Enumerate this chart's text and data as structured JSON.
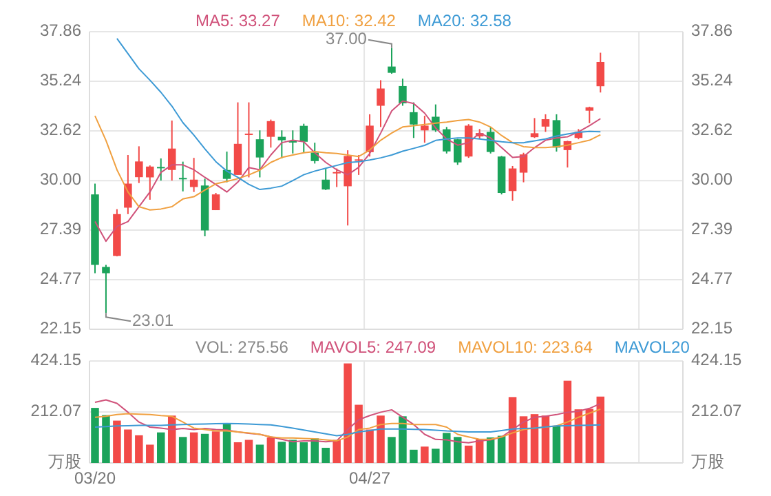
{
  "chart_data": [
    {
      "type": "candlestick",
      "categories": [
        null,
        null,
        null,
        null,
        null,
        null,
        null,
        null,
        null,
        null,
        null,
        null,
        null,
        null,
        null,
        null,
        null,
        null,
        null,
        null,
        null,
        null,
        null,
        null,
        null,
        null,
        null,
        null,
        null,
        null,
        null,
        null,
        null,
        null,
        null,
        null,
        null,
        null,
        null,
        null,
        null,
        null,
        null,
        null,
        null,
        null,
        null,
        null,
        null,
        null,
        null,
        null,
        null,
        null
      ],
      "ohlc": [
        [
          29.27,
          29.84,
          25.11,
          25.55
        ],
        [
          25.44,
          25.55,
          23.01,
          25.11
        ],
        [
          26.02,
          28.49,
          26.0,
          28.23
        ],
        [
          28.57,
          31.35,
          28.23,
          29.84
        ],
        [
          30.18,
          31.81,
          29.87,
          31.01
        ],
        [
          30.17,
          30.8,
          28.99,
          30.74
        ],
        [
          30.72,
          31.17,
          30.0,
          30.68
        ],
        [
          30.56,
          33.17,
          30.0,
          31.69
        ],
        [
          30.14,
          31.0,
          29.43,
          30.1
        ],
        [
          29.66,
          31.2,
          29.4,
          30.05
        ],
        [
          29.74,
          30.1,
          27.06,
          27.37
        ],
        [
          28.44,
          29.35,
          28.44,
          29.27
        ],
        [
          30.56,
          31.53,
          29.91,
          30.09
        ],
        [
          30.3,
          34.13,
          30.3,
          31.94
        ],
        [
          32.42,
          34.13,
          30.17,
          32.48
        ],
        [
          32.18,
          32.65,
          30.17,
          31.22
        ],
        [
          32.31,
          33.22,
          31.74,
          33.14
        ],
        [
          32.31,
          32.65,
          31.17,
          32.13
        ],
        [
          32.08,
          32.65,
          31.43,
          32.05
        ],
        [
          32.89,
          33.0,
          31.48,
          32.05
        ],
        [
          31.48,
          32.0,
          30.9,
          31.03
        ],
        [
          30.05,
          30.62,
          29.5,
          29.53
        ],
        [
          30.41,
          30.64,
          29.66,
          30.45
        ],
        [
          29.7,
          31.6,
          27.63,
          31.3
        ],
        [
          31.06,
          31.35,
          30.3,
          31.12
        ],
        [
          31.5,
          33.5,
          31.27,
          32.9
        ],
        [
          33.95,
          35.3,
          32.83,
          34.86
        ],
        [
          36.02,
          37.0,
          35.64,
          35.69
        ],
        [
          34.99,
          35.38,
          33.95,
          34.08
        ],
        [
          33.61,
          34.13,
          32.25,
          32.96
        ],
        [
          32.65,
          33.42,
          32.0,
          32.9
        ],
        [
          33.37,
          34.02,
          32.57,
          32.65
        ],
        [
          32.71,
          32.83,
          31.43,
          31.54
        ],
        [
          32.18,
          32.2,
          30.83,
          30.96
        ],
        [
          31.27,
          32.98,
          31.2,
          32.9
        ],
        [
          32.33,
          32.72,
          32.2,
          32.51
        ],
        [
          32.57,
          32.83,
          31.43,
          31.51
        ],
        [
          31.27,
          31.3,
          29.27,
          29.35
        ],
        [
          29.45,
          30.77,
          28.93,
          30.64
        ],
        [
          30.42,
          31.47,
          29.91,
          31.38
        ],
        [
          32.29,
          33.3,
          32.25,
          32.5
        ],
        [
          32.85,
          33.5,
          32.57,
          33.24
        ],
        [
          33.19,
          33.5,
          31.53,
          31.74
        ],
        [
          31.61,
          32.1,
          30.69,
          32.08
        ],
        [
          32.25,
          32.72,
          32.18,
          32.57
        ],
        [
          33.69,
          33.9,
          33.03,
          33.87
        ],
        [
          34.98,
          36.75,
          34.65,
          36.26
        ],
        null,
        null,
        null,
        null,
        null,
        null,
        null
      ],
      "colors": [
        "#1ba35a",
        "#1ba35a",
        "#f24a48",
        "#f24a48",
        "#f24a48",
        "#f24a48",
        "#1ba35a",
        "#f24a48",
        "#1ba35a",
        "#f24a48",
        "#1ba35a",
        "#f24a48",
        "#1ba35a",
        "#f24a48",
        "#f24a48",
        "#1ba35a",
        "#f24a48",
        "#1ba35a",
        "#1ba35a",
        "#1ba35a",
        "#1ba35a",
        "#1ba35a",
        "#f24a48",
        "#f24a48",
        "#f24a48",
        "#f24a48",
        "#f24a48",
        "#1ba35a",
        "#1ba35a",
        "#1ba35a",
        "#f24a48",
        "#1ba35a",
        "#1ba35a",
        "#1ba35a",
        "#f24a48",
        "#f24a48",
        "#1ba35a",
        "#1ba35a",
        "#f24a48",
        "#f24a48",
        "#f24a48",
        "#f24a48",
        "#1ba35a",
        "#f24a48",
        "#f24a48",
        "#f24a48",
        "#f24a48",
        null,
        null,
        null,
        null,
        null,
        null,
        null
      ],
      "series": [
        {
          "name": "MA5: 33.27",
          "type": "line",
          "color": "#d0527a",
          "values": [
            27.84,
            26.8,
            27.58,
            27.84,
            28.62,
            29.4,
            30.43,
            30.83,
            30.83,
            30.57,
            30.17,
            29.79,
            29.4,
            29.92,
            30.69,
            30.57,
            31.35,
            32.0,
            32.13,
            32.05,
            31.47,
            30.96,
            30.57,
            30.31,
            30.7,
            31.43,
            32.51,
            33.68,
            34.2,
            34.07,
            33.56,
            32.78,
            32.2,
            31.87,
            32.0,
            32.51,
            32.25,
            31.74,
            31.22,
            31.27,
            31.74,
            32.13,
            32.25,
            32.31,
            32.57,
            32.9,
            33.27,
            null,
            null,
            null,
            null,
            null,
            null,
            null
          ]
        },
        {
          "name": "MA10: 32.42",
          "type": "line",
          "color": "#f0a040",
          "values": [
            33.42,
            32.12,
            30.57,
            29.4,
            28.62,
            28.45,
            28.5,
            28.62,
            29.03,
            29.15,
            29.5,
            29.83,
            29.96,
            30.1,
            30.3,
            30.55,
            30.96,
            31.22,
            31.35,
            31.47,
            31.53,
            31.47,
            31.43,
            31.35,
            31.27,
            31.61,
            32.13,
            32.51,
            32.83,
            32.9,
            32.96,
            33.03,
            33.09,
            33.17,
            33.22,
            33.09,
            32.83,
            32.38,
            32.0,
            31.79,
            31.74,
            31.74,
            31.79,
            31.87,
            32.0,
            32.13,
            32.42,
            null,
            null,
            null,
            null,
            null,
            null,
            null
          ]
        },
        {
          "name": "MA20: 32.58",
          "type": "line",
          "color": "#3d9ad5",
          "values": [
            null,
            null,
            37.5,
            36.7,
            35.9,
            35.3,
            34.66,
            33.93,
            33.06,
            32.4,
            31.67,
            31.0,
            30.5,
            30.17,
            29.8,
            29.53,
            29.6,
            29.71,
            30.0,
            30.31,
            30.5,
            30.65,
            30.8,
            30.95,
            31.0,
            31.09,
            31.2,
            31.35,
            31.55,
            31.7,
            31.86,
            32.12,
            32.2,
            32.25,
            32.25,
            32.2,
            32.12,
            32.05,
            32.0,
            32.0,
            32.1,
            32.2,
            32.35,
            32.46,
            32.55,
            32.6,
            32.58,
            null,
            null,
            null,
            null,
            null,
            null,
            null
          ]
        }
      ],
      "ylim": [
        22.15,
        37.86
      ],
      "yticks": [
        22.15,
        24.77,
        27.39,
        {
          "value": 30,
          "label": "30.00"
        },
        32.62,
        35.24,
        37.86
      ],
      "y2lim": [
        22.15,
        37.86
      ],
      "y2ticks": [
        22.15,
        24.77,
        27.39,
        {
          "value": 30,
          "label": "30.00"
        },
        32.62,
        35.24,
        37.86
      ],
      "grid": true,
      "legend": "top",
      "tick_labels": "y",
      "annotations": [
        "37.00",
        "23.01"
      ]
    },
    {
      "type": "bar",
      "categories": [
        "03/20",
        null,
        null,
        null,
        null,
        null,
        null,
        null,
        null,
        null,
        null,
        null,
        null,
        null,
        null,
        null,
        null,
        null,
        null,
        null,
        null,
        null,
        null,
        null,
        null,
        "04/27",
        null,
        null,
        null,
        null,
        null,
        null,
        null,
        null,
        null,
        null,
        null,
        null,
        null,
        null,
        null,
        null,
        null,
        null,
        null,
        null,
        null,
        null,
        null,
        null,
        null,
        null,
        null,
        null
      ],
      "series": [
        {
          "type": "bar",
          "colors": [
            "#1ba35a",
            "#1ba35a",
            "#f24a48",
            "#f24a48",
            "#f24a48",
            "#f24a48",
            "#1ba35a",
            "#f24a48",
            "#1ba35a",
            "#f24a48",
            "#1ba35a",
            "#f24a48",
            "#1ba35a",
            "#f24a48",
            "#f24a48",
            "#1ba35a",
            "#f24a48",
            "#1ba35a",
            "#1ba35a",
            "#1ba35a",
            "#1ba35a",
            "#1ba35a",
            "#f24a48",
            "#f24a48",
            "#f24a48",
            "#f24a48",
            "#f24a48",
            "#1ba35a",
            "#1ba35a",
            "#1ba35a",
            "#f24a48",
            "#1ba35a",
            "#1ba35a",
            "#1ba35a",
            "#f24a48",
            "#f24a48",
            "#1ba35a",
            "#1ba35a",
            "#f24a48",
            "#f24a48",
            "#f24a48",
            "#f24a48",
            "#1ba35a",
            "#f24a48",
            "#f24a48",
            "#f24a48",
            "#f24a48",
            null,
            null,
            null,
            null,
            null,
            null,
            null
          ],
          "values": [
            229,
            199,
            176,
            139,
            115,
            76,
            127,
            197,
            108,
            127,
            121,
            131,
            164,
            86,
            96,
            76,
            106,
            88,
            96,
            86,
            102,
            63,
            96,
            414,
            242,
            139,
            197,
            108,
            194,
            55,
            68,
            59,
            125,
            108,
            72,
            98,
            106,
            113,
            274,
            194,
            203,
            197,
            154,
            342,
            223,
            225,
            276,
            null,
            null,
            null,
            null,
            null,
            null,
            null
          ]
        },
        {
          "name": "MAVOL5: 247.09",
          "type": "line",
          "color": "#d0527a",
          "values": [
            252,
            262,
            248,
            211,
            170,
            149,
            145,
            139,
            143,
            139,
            143,
            139,
            137,
            129,
            123,
            119,
            108,
            98,
            88,
            92,
            92,
            88,
            92,
            139,
            180,
            197,
            211,
            221,
            190,
            160,
            119,
            98,
            96,
            88,
            84,
            92,
            96,
            108,
            139,
            170,
            190,
            194,
            201,
            211,
            215,
            227,
            247,
            null,
            null,
            null,
            null,
            null,
            null,
            null
          ]
        },
        {
          "name": "MAVOL10: 223.64",
          "type": "line",
          "color": "#f0a040",
          "values": [
            190,
            194,
            201,
            205,
            203,
            201,
            197,
            194,
            170,
            145,
            139,
            133,
            133,
            129,
            125,
            119,
            108,
            104,
            104,
            102,
            100,
            96,
            92,
            108,
            139,
            145,
            160,
            164,
            164,
            160,
            160,
            160,
            149,
            119,
            108,
            98,
            98,
            108,
            125,
            139,
            145,
            149,
            154,
            170,
            190,
            207,
            224,
            null,
            null,
            null,
            null,
            null,
            null,
            null
          ]
        },
        {
          "name": "MAVOL20",
          "type": "line",
          "color": "#3d9ad5",
          "values": [
            149,
            151,
            154,
            155,
            156,
            156,
            156,
            158,
            160,
            161,
            162,
            163,
            164,
            163,
            162,
            160,
            158,
            152,
            145,
            137,
            129,
            121,
            113,
            119,
            129,
            135,
            141,
            141,
            141,
            140,
            139,
            136,
            133,
            131,
            129,
            129,
            129,
            135,
            141,
            143,
            145,
            150,
            154,
            155,
            156,
            157,
            158,
            null,
            null,
            null,
            null,
            null,
            null,
            null
          ]
        }
      ],
      "ylim": [
        0,
        424.15
      ],
      "yticks": [
        {
          "value": 0,
          "label": "万股"
        },
        212.07,
        424.15
      ],
      "y2lim": [
        0,
        424.15
      ],
      "y2ticks": [
        {
          "value": 0,
          "label": "万股"
        },
        212.07,
        424.15
      ],
      "grid": true,
      "legend": "top",
      "annotations": [
        "VOL: 275.56"
      ]
    }
  ]
}
